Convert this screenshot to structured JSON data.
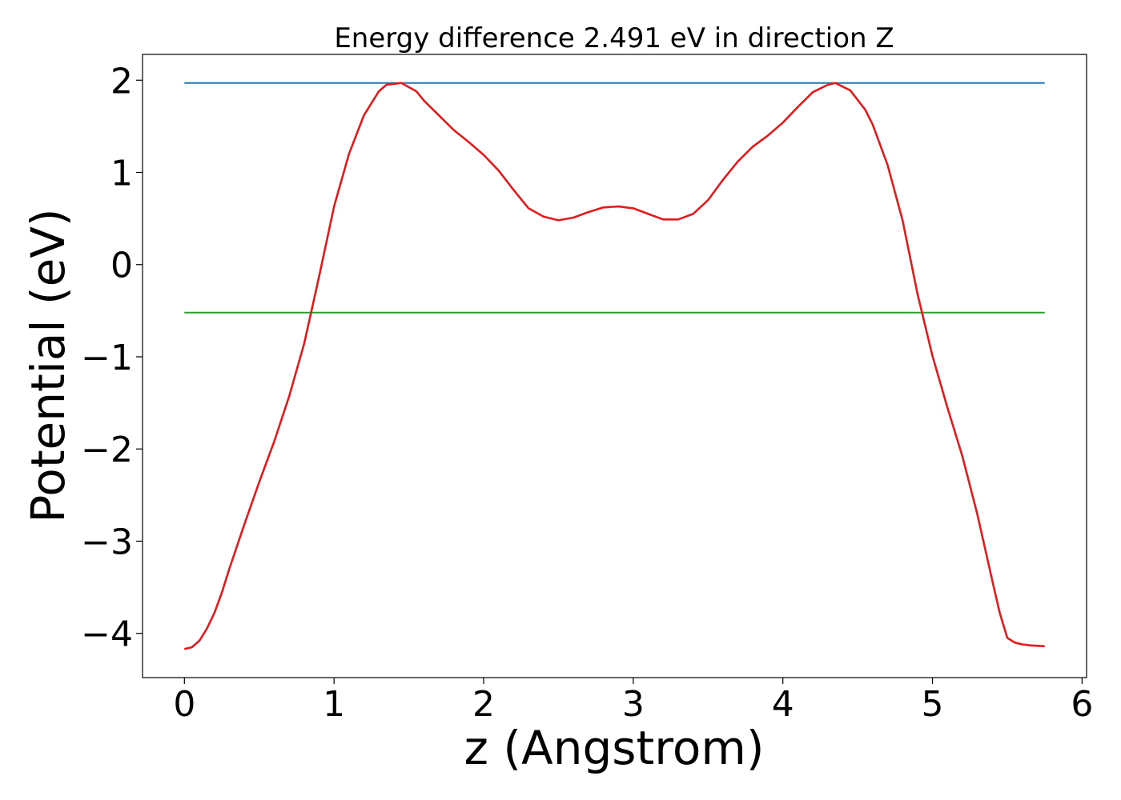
{
  "chart_data": {
    "type": "line",
    "title": "Energy difference 2.491 eV in direction Z",
    "xlabel": "z (Angstrom)",
    "ylabel": "Potential (eV)",
    "xlim": [
      -0.28,
      6.03
    ],
    "ylim": [
      -4.48,
      2.28
    ],
    "xticks": [
      0,
      1,
      2,
      3,
      4,
      5,
      6
    ],
    "xtick_labels": [
      "0",
      "1",
      "2",
      "3",
      "4",
      "5",
      "6"
    ],
    "yticks": [
      -4,
      -3,
      -2,
      -1,
      0,
      1,
      2
    ],
    "ytick_labels": [
      "−4",
      "−3",
      "−2",
      "−1",
      "0",
      "1",
      "2"
    ],
    "grid": false,
    "series": [
      {
        "color": "#1f77b4",
        "x": [
          0,
          5.75
        ],
        "y": [
          1.97,
          1.97
        ]
      },
      {
        "color": "#2ca02c",
        "x": [
          0,
          5.75
        ],
        "y": [
          -0.52,
          -0.52
        ]
      },
      {
        "color": "#e31a1c",
        "x": [
          0,
          0.05,
          0.1,
          0.15,
          0.2,
          0.25,
          0.3,
          0.4,
          0.5,
          0.6,
          0.7,
          0.8,
          0.9,
          1.0,
          1.1,
          1.2,
          1.3,
          1.35,
          1.45,
          1.55,
          1.6,
          1.7,
          1.8,
          1.9,
          2.0,
          2.1,
          2.2,
          2.3,
          2.4,
          2.5,
          2.6,
          2.7,
          2.8,
          2.9,
          3.0,
          3.1,
          3.2,
          3.3,
          3.4,
          3.5,
          3.6,
          3.7,
          3.8,
          3.9,
          4.0,
          4.1,
          4.2,
          4.3,
          4.35,
          4.45,
          4.55,
          4.6,
          4.7,
          4.8,
          4.9,
          5.0,
          5.1,
          5.2,
          5.3,
          5.4,
          5.45,
          5.5,
          5.55,
          5.6,
          5.65,
          5.75
        ],
        "y": [
          -4.17,
          -4.15,
          -4.08,
          -3.95,
          -3.78,
          -3.56,
          -3.3,
          -2.82,
          -2.36,
          -1.92,
          -1.43,
          -0.86,
          -0.13,
          0.63,
          1.2,
          1.62,
          1.88,
          1.95,
          1.97,
          1.88,
          1.78,
          1.62,
          1.46,
          1.33,
          1.19,
          1.02,
          0.81,
          0.61,
          0.52,
          0.48,
          0.51,
          0.57,
          0.62,
          0.63,
          0.61,
          0.55,
          0.49,
          0.49,
          0.55,
          0.7,
          0.92,
          1.12,
          1.28,
          1.4,
          1.54,
          1.71,
          1.87,
          1.95,
          1.97,
          1.89,
          1.68,
          1.52,
          1.08,
          0.48,
          -0.32,
          -0.99,
          -1.55,
          -2.08,
          -2.71,
          -3.43,
          -3.78,
          -4.05,
          -4.1,
          -4.12,
          -4.13,
          -4.14
        ]
      }
    ]
  }
}
